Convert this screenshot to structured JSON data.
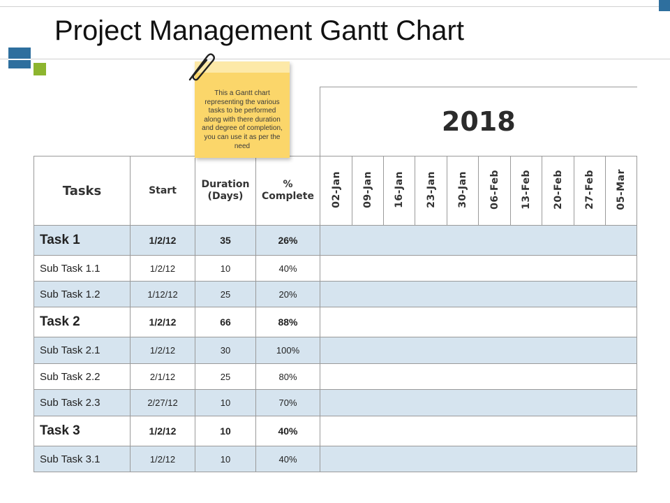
{
  "title": "Project Management Gantt Chart",
  "sticky_note": "This a Gantt chart representing the various tasks to be performed along with there duration and degree of completion, you can use it as per the need",
  "year": "2018",
  "headers": {
    "tasks": "Tasks",
    "start": "Start",
    "duration": "Duration (Days)",
    "complete": "% Complete"
  },
  "dates": [
    "02-Jan",
    "09-Jan",
    "16-Jan",
    "23-Jan",
    "30-Jan",
    "06-Feb",
    "13-Feb",
    "20-Feb",
    "27-Feb",
    "05-Mar"
  ],
  "rows": [
    {
      "name": "Task 1",
      "start": "1/2/12",
      "duration": "35",
      "complete": "26%"
    },
    {
      "name": "Sub Task 1.1",
      "start": "1/2/12",
      "duration": "10",
      "complete": "40%"
    },
    {
      "name": "Sub Task 1.2",
      "start": "1/12/12",
      "duration": "25",
      "complete": "20%"
    },
    {
      "name": "Task 2",
      "start": "1/2/12",
      "duration": "66",
      "complete": "88%"
    },
    {
      "name": "Sub Task 2.1",
      "start": "1/2/12",
      "duration": "30",
      "complete": "100%"
    },
    {
      "name": "Sub Task 2.2",
      "start": "2/1/12",
      "duration": "25",
      "complete": "80%"
    },
    {
      "name": "Sub Task 2.3",
      "start": "2/27/12",
      "duration": "10",
      "complete": "70%"
    },
    {
      "name": "Task 3",
      "start": "1/2/12",
      "duration": "10",
      "complete": "40%"
    },
    {
      "name": "Sub Task 3.1",
      "start": "1/2/12",
      "duration": "10",
      "complete": "40%"
    }
  ],
  "colors": {
    "accent_blue": "#2e6f9e",
    "accent_green": "#8db52f",
    "row_shade": "#d6e4ef",
    "note_yellow": "#fbd66a"
  }
}
